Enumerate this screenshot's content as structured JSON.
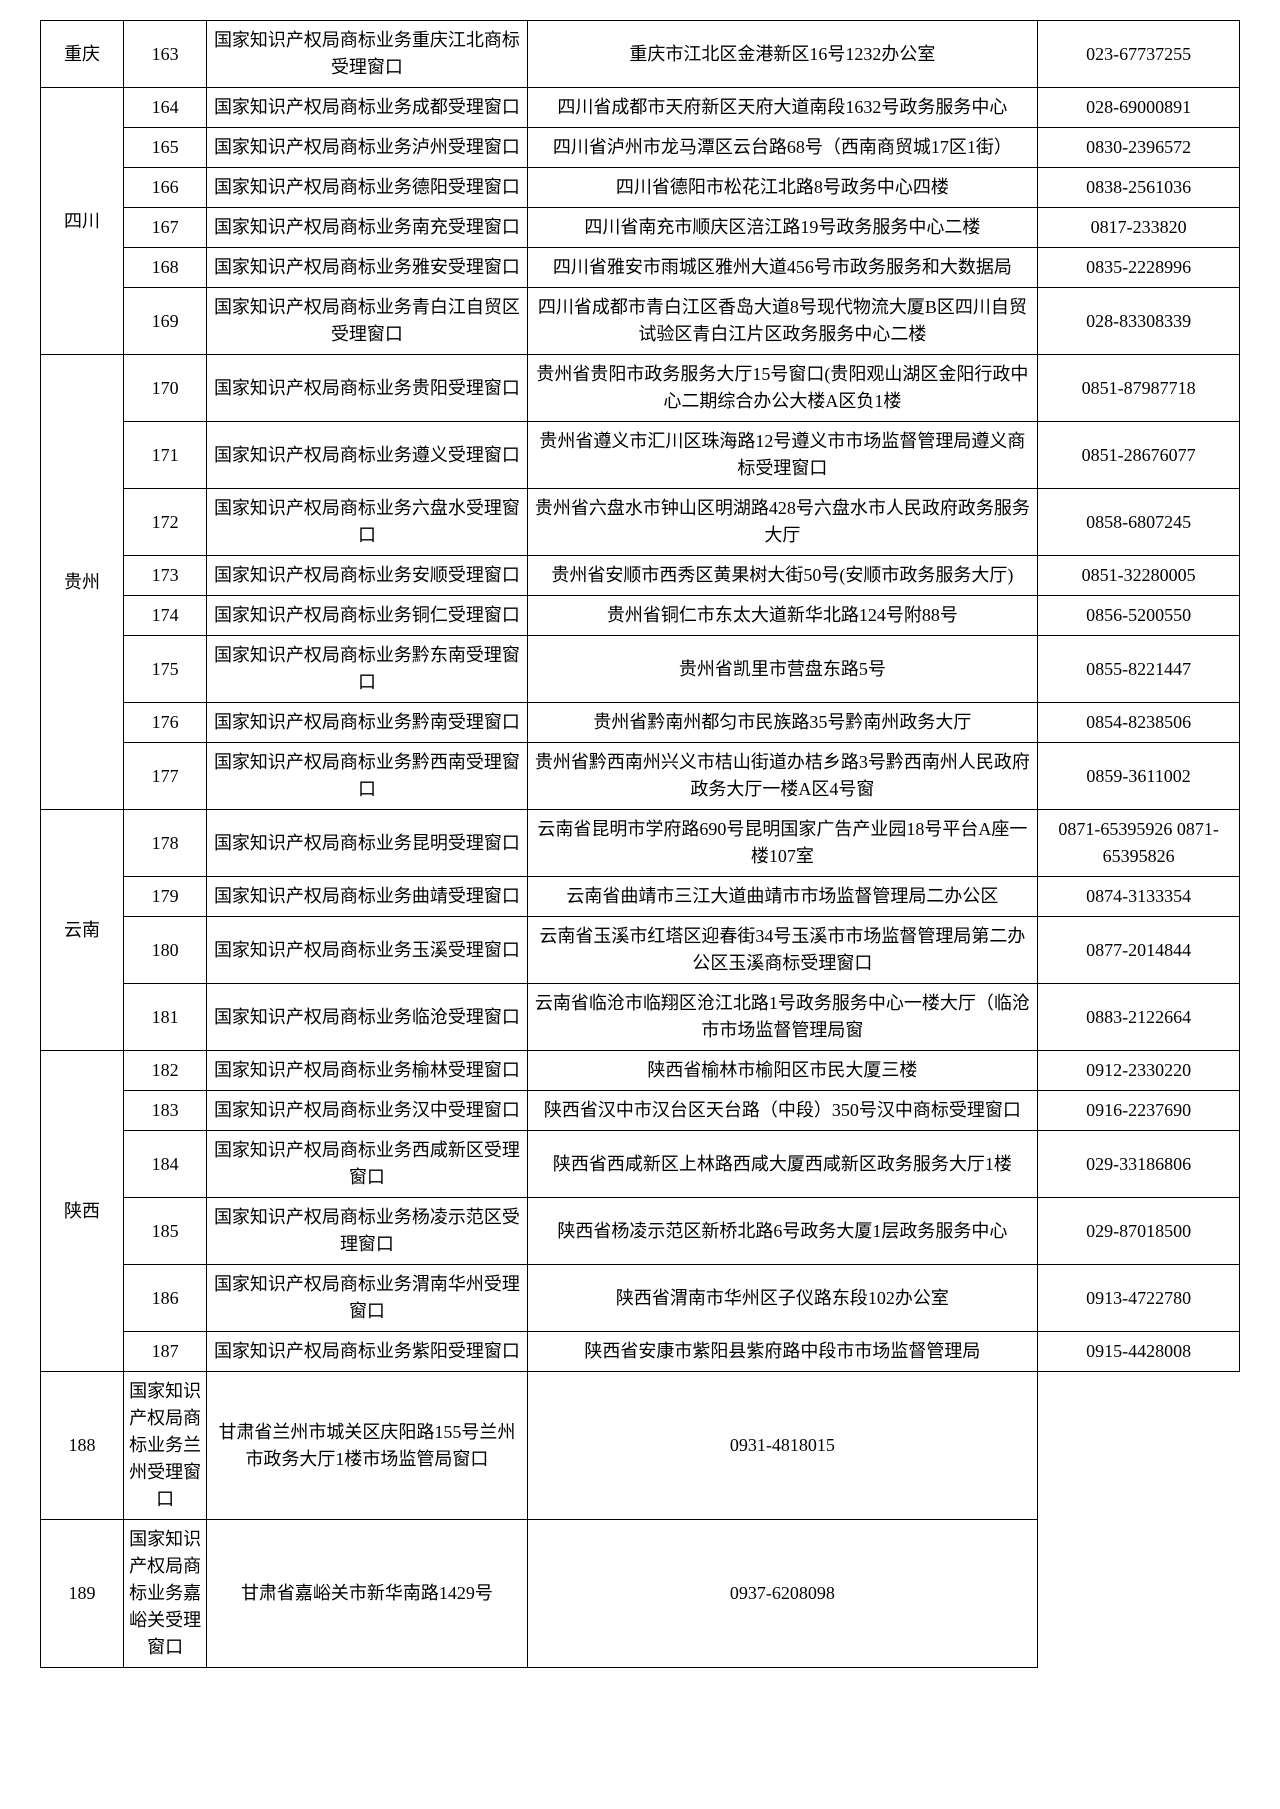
{
  "rows": [
    {
      "province": "重庆",
      "province_rowspan": 1,
      "num": "163",
      "name": "国家知识产权局商标业务重庆江北商标受理窗口",
      "addr": "重庆市江北区金港新区16号1232办公室",
      "tel": "023-67737255"
    },
    {
      "province": "四川",
      "province_rowspan": 6,
      "num": "164",
      "name": "国家知识产权局商标业务成都受理窗口",
      "addr": "四川省成都市天府新区天府大道南段1632号政务服务中心",
      "tel": "028-69000891"
    },
    {
      "num": "165",
      "name": "国家知识产权局商标业务泸州受理窗口",
      "addr": "四川省泸州市龙马潭区云台路68号（西南商贸城17区1街）",
      "tel": "0830-2396572"
    },
    {
      "num": "166",
      "name": "国家知识产权局商标业务德阳受理窗口",
      "addr": "四川省德阳市松花江北路8号政务中心四楼",
      "tel": "0838-2561036"
    },
    {
      "num": "167",
      "name": "国家知识产权局商标业务南充受理窗口",
      "addr": "四川省南充市顺庆区涪江路19号政务服务中心二楼",
      "tel": "0817-233820"
    },
    {
      "num": "168",
      "name": "国家知识产权局商标业务雅安受理窗口",
      "addr": "四川省雅安市雨城区雅州大道456号市政务服务和大数据局",
      "tel": "0835-2228996"
    },
    {
      "num": "169",
      "name": "国家知识产权局商标业务青白江自贸区受理窗口",
      "addr": "四川省成都市青白江区香岛大道8号现代物流大厦B区四川自贸试验区青白江片区政务服务中心二楼",
      "tel": "028-83308339"
    },
    {
      "province": "贵州",
      "province_rowspan": 8,
      "num": "170",
      "name": "国家知识产权局商标业务贵阳受理窗口",
      "addr": "贵州省贵阳市政务服务大厅15号窗口(贵阳观山湖区金阳行政中心二期综合办公大楼A区负1楼",
      "tel": "0851-87987718"
    },
    {
      "num": "171",
      "name": "国家知识产权局商标业务遵义受理窗口",
      "addr": "贵州省遵义市汇川区珠海路12号遵义市市场监督管理局遵义商标受理窗口",
      "tel": "0851-28676077"
    },
    {
      "num": "172",
      "name": "国家知识产权局商标业务六盘水受理窗口",
      "addr": "贵州省六盘水市钟山区明湖路428号六盘水市人民政府政务服务大厅",
      "tel": "0858-6807245"
    },
    {
      "num": "173",
      "name": "国家知识产权局商标业务安顺受理窗口",
      "addr": "贵州省安顺市西秀区黄果树大街50号(安顺市政务服务大厅)",
      "tel": "0851-32280005"
    },
    {
      "num": "174",
      "name": "国家知识产权局商标业务铜仁受理窗口",
      "addr": "贵州省铜仁市东太大道新华北路124号附88号",
      "tel": "0856-5200550"
    },
    {
      "num": "175",
      "name": "国家知识产权局商标业务黔东南受理窗口",
      "addr": "贵州省凯里市营盘东路5号",
      "tel": "0855-8221447"
    },
    {
      "num": "176",
      "name": "国家知识产权局商标业务黔南受理窗口",
      "addr": "贵州省黔南州都匀市民族路35号黔南州政务大厅",
      "tel": "0854-8238506"
    },
    {
      "num": "177",
      "name": "国家知识产权局商标业务黔西南受理窗口",
      "addr": "贵州省黔西南州兴义市桔山街道办桔乡路3号黔西南州人民政府政务大厅一楼A区4号窗",
      "tel": "0859-3611002"
    },
    {
      "province": "云南",
      "province_rowspan": 4,
      "num": "178",
      "name": "国家知识产权局商标业务昆明受理窗口",
      "addr": "云南省昆明市学府路690号昆明国家广告产业园18号平台A座一楼107室",
      "tel": "0871-65395926 0871-65395826"
    },
    {
      "num": "179",
      "name": "国家知识产权局商标业务曲靖受理窗口",
      "addr": "云南省曲靖市三江大道曲靖市市场监督管理局二办公区",
      "tel": "0874-3133354"
    },
    {
      "num": "180",
      "name": "国家知识产权局商标业务玉溪受理窗口",
      "addr": "云南省玉溪市红塔区迎春街34号玉溪市市场监督管理局第二办公区玉溪商标受理窗口",
      "tel": "0877-2014844"
    },
    {
      "num": "181",
      "name": "国家知识产权局商标业务临沧受理窗口",
      "addr": "云南省临沧市临翔区沧江北路1号政务服务中心一楼大厅（临沧市市场监督管理局窗",
      "tel": "0883-2122664"
    },
    {
      "province": "陕西",
      "province_rowspan": 6,
      "num": "182",
      "name": "国家知识产权局商标业务榆林受理窗口",
      "addr": "陕西省榆林市榆阳区市民大厦三楼",
      "tel": "0912-2330220"
    },
    {
      "num": "183",
      "name": "国家知识产权局商标业务汉中受理窗口",
      "addr": "陕西省汉中市汉台区天台路（中段）350号汉中商标受理窗口",
      "tel": "0916-2237690"
    },
    {
      "num": "184",
      "name": "国家知识产权局商标业务西咸新区受理窗口",
      "addr": "陕西省西咸新区上林路西咸大厦西咸新区政务服务大厅1楼",
      "tel": "029-33186806"
    },
    {
      "num": "185",
      "name": "国家知识产权局商标业务杨凌示范区受理窗口",
      "addr": "陕西省杨凌示范区新桥北路6号政务大厦1层政务服务中心",
      "tel": "029-87018500"
    },
    {
      "num": "186",
      "name": "国家知识产权局商标业务渭南华州受理窗口",
      "addr": "陕西省渭南市华州区子仪路东段102办公室",
      "tel": "0913-4722780"
    },
    {
      "num": "187",
      "name": "国家知识产权局商标业务紫阳受理窗口",
      "addr": "陕西省安康市紫阳县紫府路中段市市场监督管理局",
      "tel": "0915-4428008"
    },
    {
      "num": "188",
      "name": "国家知识产权局商标业务兰州受理窗口",
      "addr": "甘肃省兰州市城关区庆阳路155号兰州市政务大厅1楼市场监管局窗口",
      "tel": "0931-4818015"
    },
    {
      "num": "189",
      "name": "国家知识产权局商标业务嘉峪关受理窗口",
      "addr": "甘肃省嘉峪关市新华南路1429号",
      "tel": "0937-6208098"
    }
  ]
}
